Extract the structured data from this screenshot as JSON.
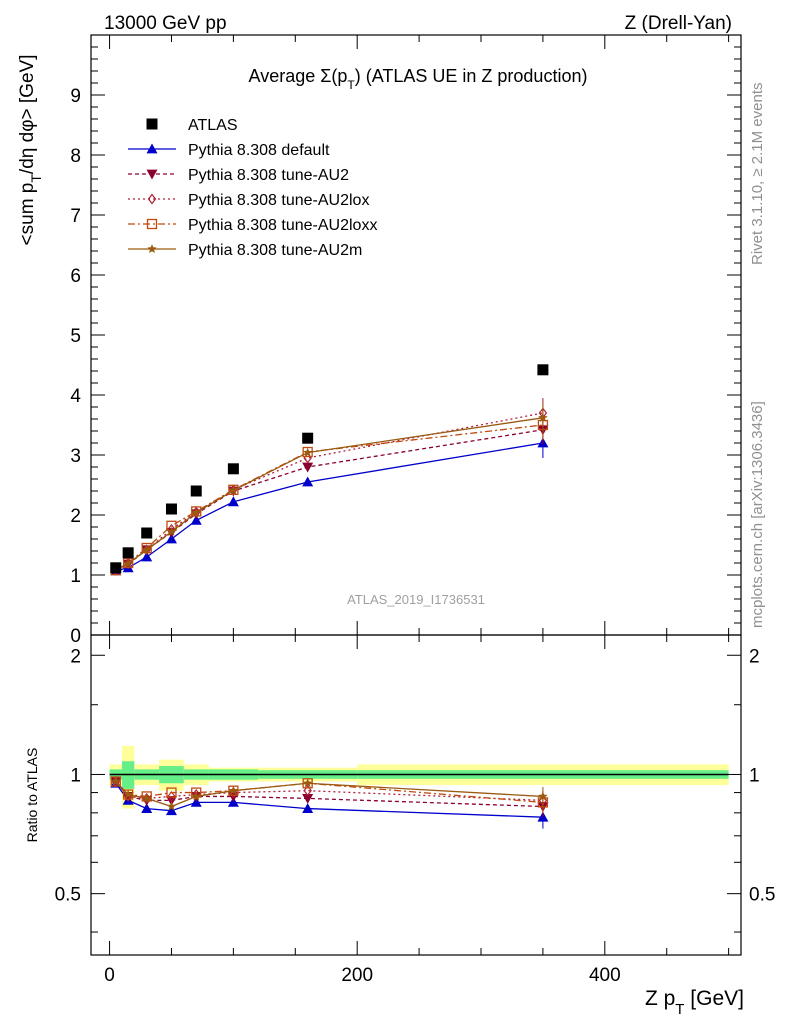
{
  "header": {
    "left": "13000 GeV pp",
    "right": "Z (Drell-Yan)"
  },
  "side_labels": {
    "rivet": "Rivet 3.1.10, ≥ 2.1M events",
    "mcplots": "mcplots.cern.ch [arXiv:1306.3436]"
  },
  "chart_data": {
    "type": "scatter",
    "title": "Average Σ(p_T) (ATLAS UE in Z production)",
    "analysis_id": "ATLAS_2019_I1736531",
    "xlabel": "Z p_T [GeV]",
    "ylabel": "<sum p_T/dη dφ> [GeV]",
    "ratio_ylabel": "Ratio to ATLAS",
    "xlim": [
      -15,
      510
    ],
    "ylim": [
      0,
      10
    ],
    "ratio_ylim": [
      0.35,
      2.25
    ],
    "x_ticks": [
      "0",
      "200",
      "400"
    ],
    "y_ticks": [
      "0",
      "1",
      "2",
      "3",
      "4",
      "5",
      "6",
      "7",
      "8",
      "9"
    ],
    "ratio_ticks": [
      "0.5",
      "1",
      "2"
    ],
    "legend_position": "top-left",
    "x": [
      5,
      15,
      30,
      50,
      70,
      100,
      160,
      350
    ],
    "bin_edges": [
      0,
      10,
      20,
      40,
      60,
      80,
      120,
      200,
      500
    ],
    "reference": {
      "name": "ATLAS",
      "values": [
        1.12,
        1.37,
        1.7,
        2.1,
        2.4,
        2.77,
        3.28,
        4.42
      ],
      "band_inner": [
        0.03,
        0.08,
        0.03,
        0.05,
        0.03,
        0.03,
        0.025,
        0.025
      ],
      "band_outer": [
        0.06,
        0.18,
        0.06,
        0.09,
        0.06,
        0.04,
        0.04,
        0.06
      ]
    },
    "series": [
      {
        "name": "Pythia 8.308 default",
        "color": "#0000cc",
        "dash": "",
        "marker": "triangle-up",
        "values": [
          1.07,
          1.12,
          1.3,
          1.6,
          1.91,
          2.22,
          2.55,
          3.2
        ],
        "ratio": [
          0.95,
          0.86,
          0.82,
          0.81,
          0.85,
          0.85,
          0.82,
          0.78
        ]
      },
      {
        "name": "Pythia 8.308 tune-AU2",
        "color": "#8b0030",
        "dash": "4,3",
        "marker": "triangle-down",
        "values": [
          1.08,
          1.18,
          1.42,
          1.71,
          2.02,
          2.4,
          2.8,
          3.42
        ],
        "ratio": [
          0.96,
          0.88,
          0.86,
          0.86,
          0.88,
          0.88,
          0.87,
          0.83
        ]
      },
      {
        "name": "Pythia 8.308 tune-AU2lox",
        "color": "#b0203a",
        "dash": "2,3",
        "marker": "diamond-open",
        "values": [
          1.08,
          1.2,
          1.42,
          1.76,
          2.05,
          2.42,
          2.95,
          3.7
        ],
        "ratio": [
          0.96,
          0.88,
          0.87,
          0.88,
          0.89,
          0.9,
          0.91,
          0.86
        ]
      },
      {
        "name": "Pythia 8.308 tune-AU2loxx",
        "color": "#c04a10",
        "dash": "7,3,2,3",
        "marker": "square-open",
        "values": [
          1.08,
          1.2,
          1.45,
          1.82,
          2.06,
          2.42,
          3.05,
          3.5
        ],
        "ratio": [
          0.96,
          0.89,
          0.88,
          0.9,
          0.9,
          0.91,
          0.95,
          0.85
        ]
      },
      {
        "name": "Pythia 8.308 tune-AU2m",
        "color": "#9a5a10",
        "dash": "",
        "marker": "star",
        "values": [
          1.09,
          1.19,
          1.42,
          1.72,
          2.04,
          2.41,
          3.04,
          3.62
        ],
        "ratio": [
          0.96,
          0.89,
          0.87,
          0.83,
          0.88,
          0.91,
          0.95,
          0.88
        ]
      }
    ]
  }
}
